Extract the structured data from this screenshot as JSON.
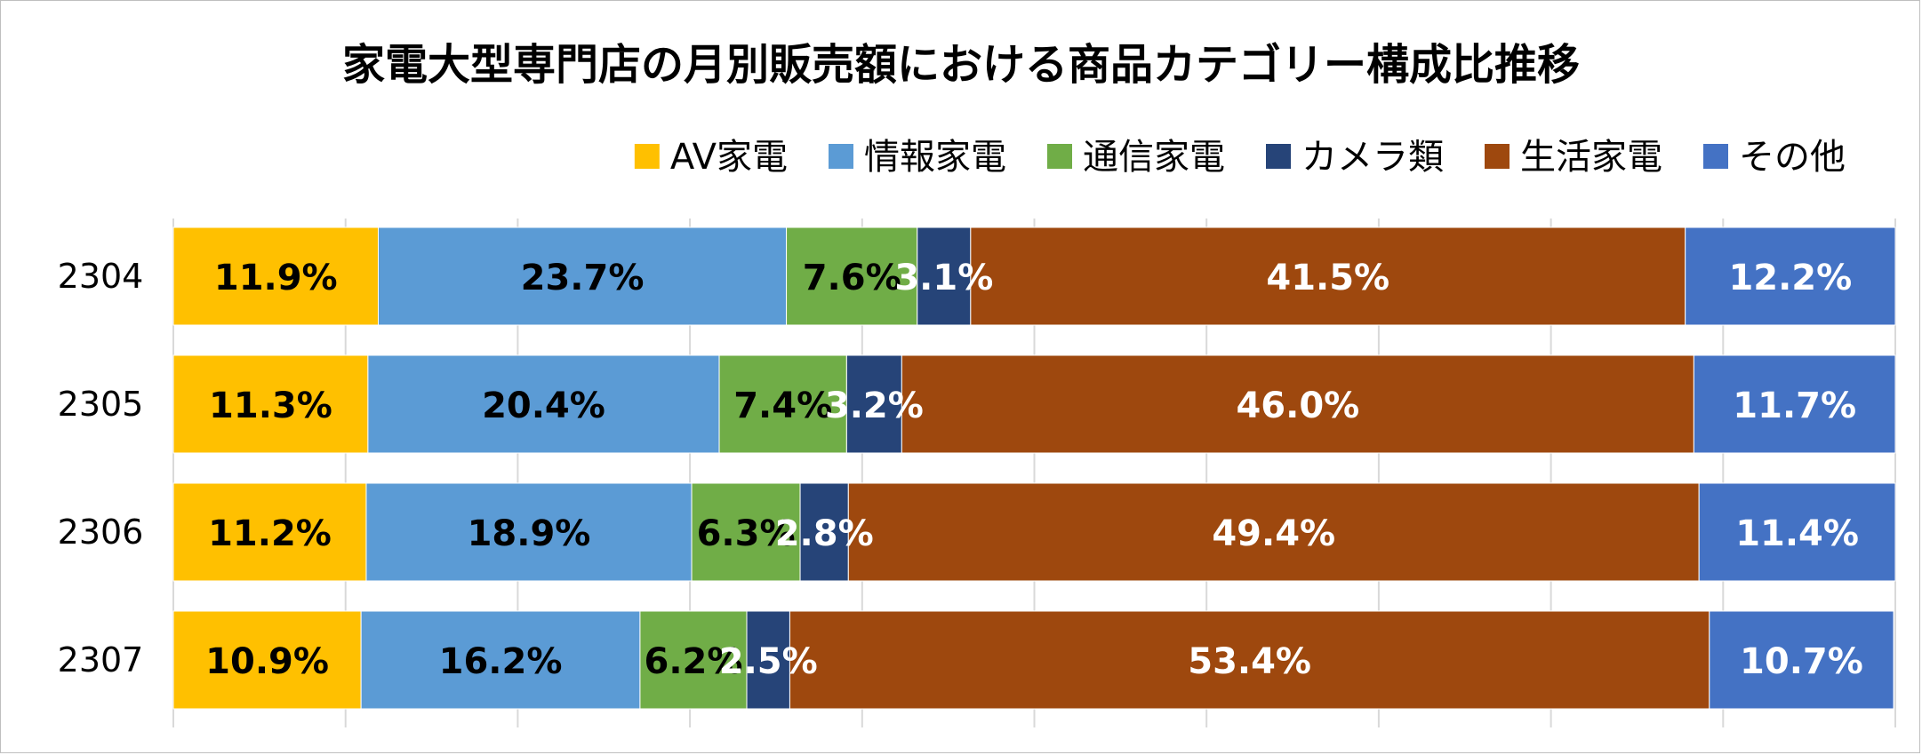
{
  "chart_data": {
    "type": "bar",
    "orientation": "horizontal",
    "stacked": "percent",
    "title": "家電大型専門店の月別販売額における商品カテゴリー構成比推移",
    "categories": [
      "2304",
      "2305",
      "2306",
      "2307"
    ],
    "series": [
      {
        "name": "AV家電",
        "color": "#FFC000",
        "label_color": "#000000",
        "values": [
          11.9,
          11.3,
          11.2,
          10.9
        ]
      },
      {
        "name": "情報家電",
        "color": "#5B9BD5",
        "label_color": "#000000",
        "values": [
          23.7,
          20.4,
          18.9,
          16.2
        ]
      },
      {
        "name": "通信家電",
        "color": "#70AD47",
        "label_color": "#000000",
        "values": [
          7.6,
          7.4,
          6.3,
          6.2
        ]
      },
      {
        "name": "カメラ類",
        "color": "#264478",
        "label_color": "#FFFFFF",
        "values": [
          3.1,
          3.2,
          2.8,
          2.5
        ]
      },
      {
        "name": "生活家電",
        "color": "#9E480E",
        "label_color": "#FFFFFF",
        "values": [
          41.5,
          46.0,
          49.4,
          53.4
        ]
      },
      {
        "name": "その他",
        "color": "#4472C4",
        "label_color": "#FFFFFF",
        "values": [
          12.2,
          11.7,
          11.4,
          10.7
        ]
      }
    ],
    "value_suffix": "%",
    "xlim": [
      0,
      100
    ],
    "grid": true,
    "legend": "top-right"
  }
}
